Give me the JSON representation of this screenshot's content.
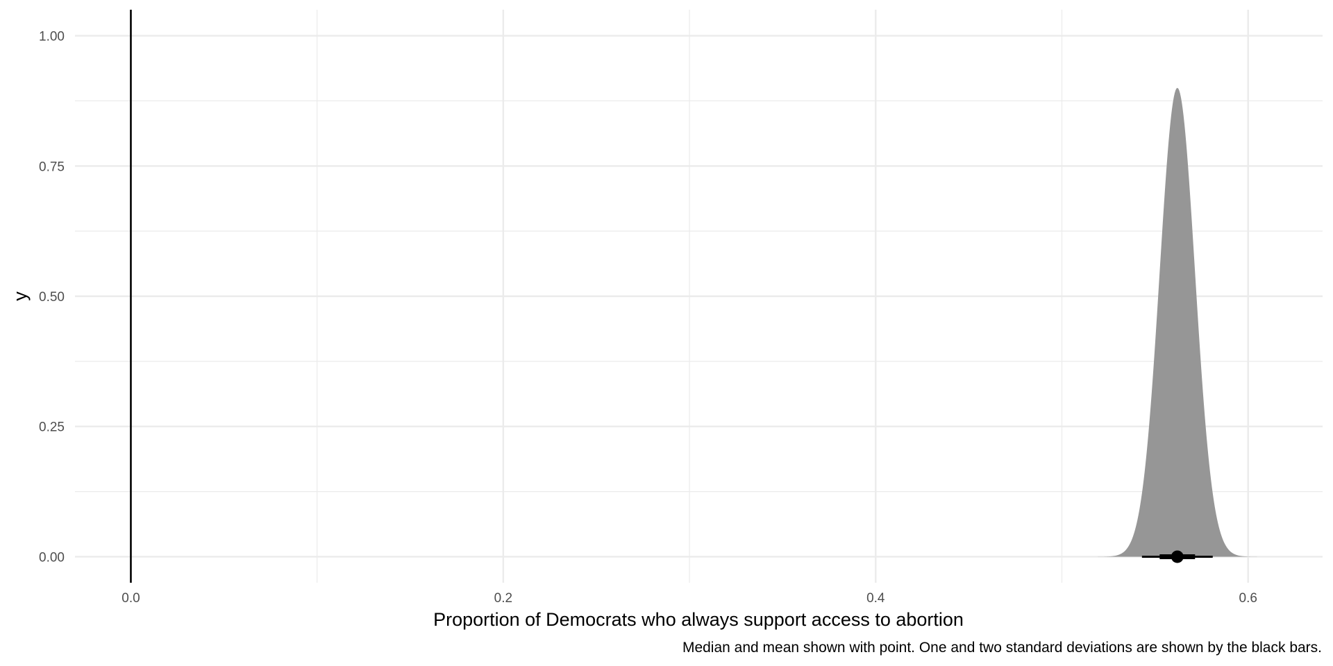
{
  "chart_data": {
    "type": "area",
    "title": "",
    "xlabel": "Proportion of Democrats who always support access to abortion",
    "ylabel": "y",
    "caption": "Median and mean shown with point. One and two standard deviations are shown by the black bars.",
    "xlim": [
      -0.03,
      0.64
    ],
    "ylim": [
      -0.05,
      1.05
    ],
    "x_ticks": [
      0.0,
      0.2,
      0.4,
      0.6
    ],
    "x_tick_labels": [
      "0.0",
      "0.2",
      "0.4",
      "0.6"
    ],
    "y_ticks": [
      0.0,
      0.25,
      0.5,
      0.75,
      1.0
    ],
    "y_tick_labels": [
      "0.00",
      "0.25",
      "0.50",
      "0.75",
      "1.00"
    ],
    "grid": true,
    "legend": "none",
    "reference_line_x": 0.0,
    "density": {
      "mean": 0.562,
      "sd": 0.0095,
      "peak_y": 0.9,
      "fill": "#969696"
    },
    "point_interval": {
      "point": 0.562,
      "inner_interval": [
        0.5525,
        0.5715
      ],
      "outer_interval": [
        0.543,
        0.581
      ],
      "color": "#000000"
    }
  }
}
